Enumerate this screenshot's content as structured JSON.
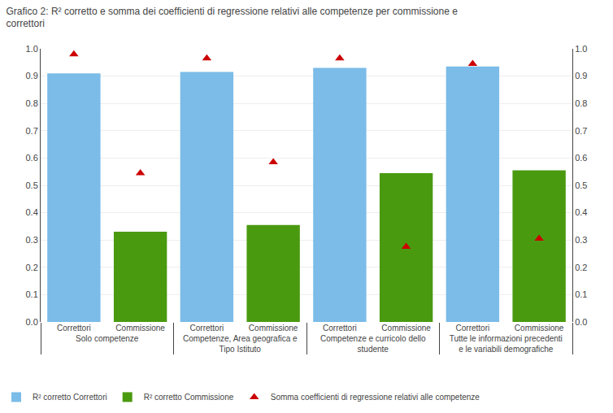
{
  "chart_data": {
    "type": "bar",
    "title": "Grafico 2: R² corretto e somma dei coefficienti di regressione relativi alle competenze per commissione e\ncorrettori",
    "categories": [
      "Solo competenze",
      "Competenze, Area geografica e\nTipo Istituto",
      "Competenze e curricolo dello\nstudente",
      "Tutte le informazioni precedenti\ne le variabili demografiche"
    ],
    "subcategories": [
      "Correttori",
      "Commissione"
    ],
    "series": [
      {
        "name": "R² corretto Correttori",
        "type": "bar",
        "color": "#7bbce8",
        "values": [
          0.91,
          0.915,
          0.93,
          0.935
        ]
      },
      {
        "name": "R² corretto Commissione",
        "type": "bar",
        "color": "#4a9a10",
        "values": [
          0.33,
          0.355,
          0.545,
          0.555
        ]
      },
      {
        "name": "Somma coefficienti di regressione relativi alle competenze",
        "type": "scatter",
        "marker": "triangle-up",
        "color": "#cc0000",
        "values": [
          [
            0.98,
            0.545
          ],
          [
            0.965,
            0.585
          ],
          [
            0.965,
            0.275
          ],
          [
            0.945,
            0.305
          ]
        ]
      }
    ],
    "ylim": [
      0,
      1
    ],
    "yticks": [
      {
        "value": 0,
        "label": "0.0"
      },
      0.1,
      0.2,
      0.3,
      0.4,
      0.5,
      0.6,
      0.7,
      0.8,
      0.9,
      {
        "value": 1,
        "label": "1.0"
      }
    ],
    "y2lim": [
      0,
      1
    ],
    "y2ticks": [
      {
        "value": 0,
        "label": "0.0"
      },
      0.1,
      0.2,
      0.3,
      0.4,
      0.5,
      0.6,
      0.7,
      0.8,
      0.9,
      {
        "value": 1,
        "label": "1.0"
      }
    ],
    "grid": true,
    "legend": "lower left"
  }
}
